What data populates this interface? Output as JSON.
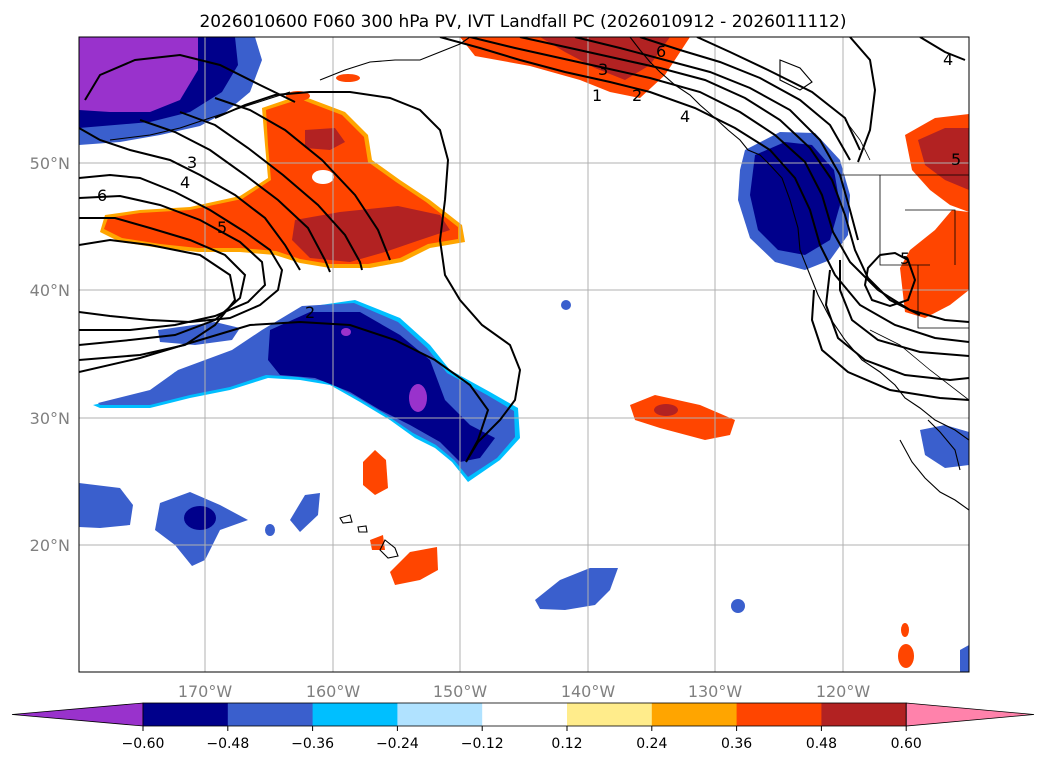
{
  "title": "2026010600 F060 300 hPa PV, IVT Landfall PC (2026010912 - 2026011112)",
  "lat_labels": [
    "50°N",
    "40°N",
    "30°N",
    "20°N"
  ],
  "lon_labels": [
    "170°W",
    "160°W",
    "150°W",
    "140°W",
    "130°W",
    "120°W"
  ],
  "colorbar": {
    "ticks": [
      "−0.60",
      "−0.48",
      "−0.36",
      "−0.24",
      "−0.12",
      "0.12",
      "0.24",
      "0.36",
      "0.48",
      "0.60"
    ],
    "colors": [
      "#9932cc",
      "#00008b",
      "#3a5fcd",
      "#00bfff",
      "#b0e2ff",
      "#ffffff",
      "#ffec8b",
      "#ffa500",
      "#ff4500",
      "#b22222",
      "#ff82ab"
    ]
  },
  "contour_labels": [
    "6",
    "3",
    "2",
    "1",
    "4",
    "3",
    "4",
    "5",
    "6",
    "5",
    "2",
    "4",
    "5"
  ]
}
